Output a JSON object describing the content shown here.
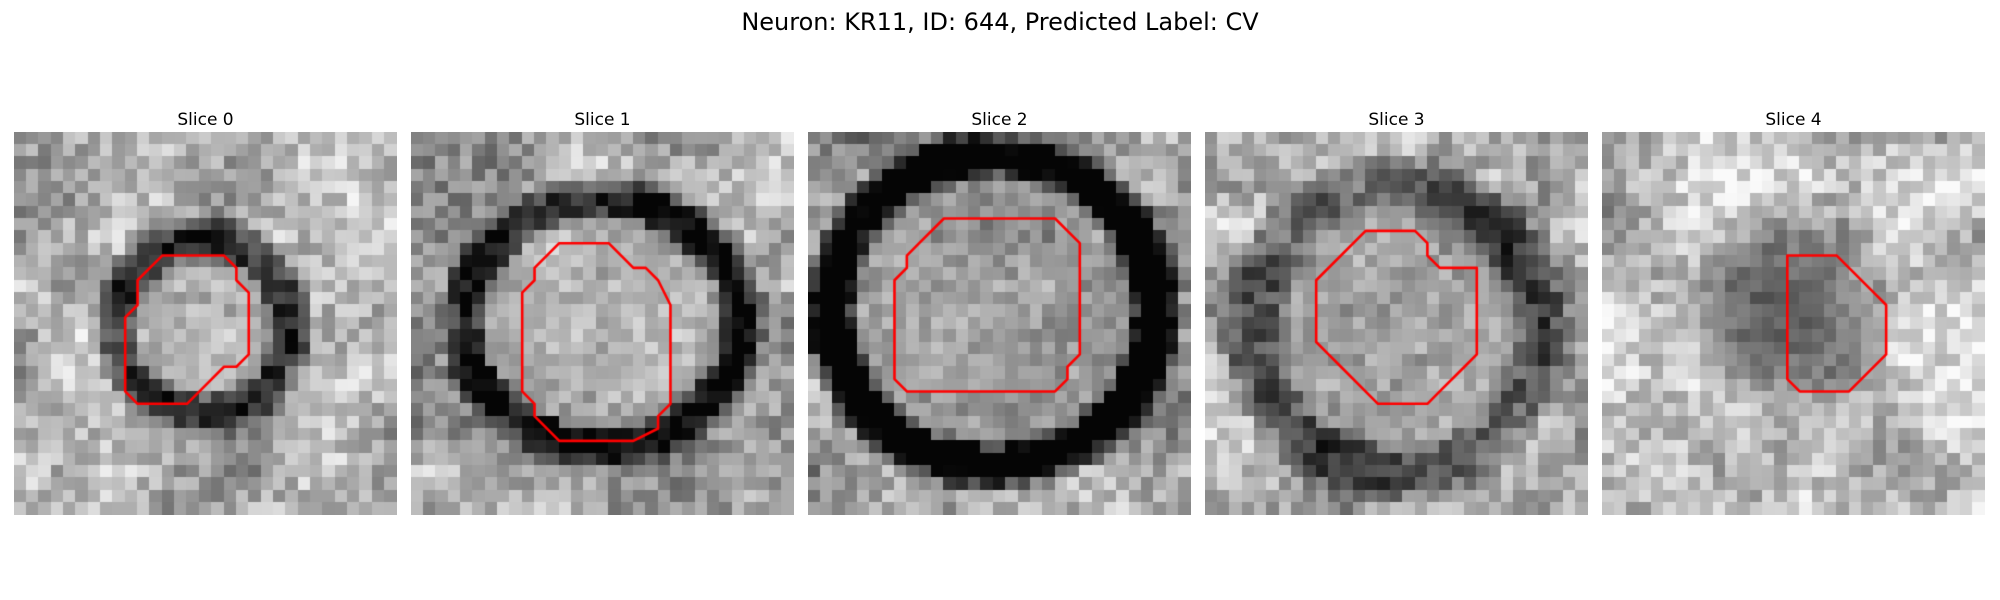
{
  "figure": {
    "title": "Neuron: KR11, ID: 644, Predicted Label: CV"
  },
  "outline_color": "#ff0000",
  "colormap": "gray",
  "panels": [
    {
      "title": "Slice 0"
    },
    {
      "title": "Slice 1"
    },
    {
      "title": "Slice 2"
    },
    {
      "title": "Slice 3"
    },
    {
      "title": "Slice 4"
    }
  ]
}
